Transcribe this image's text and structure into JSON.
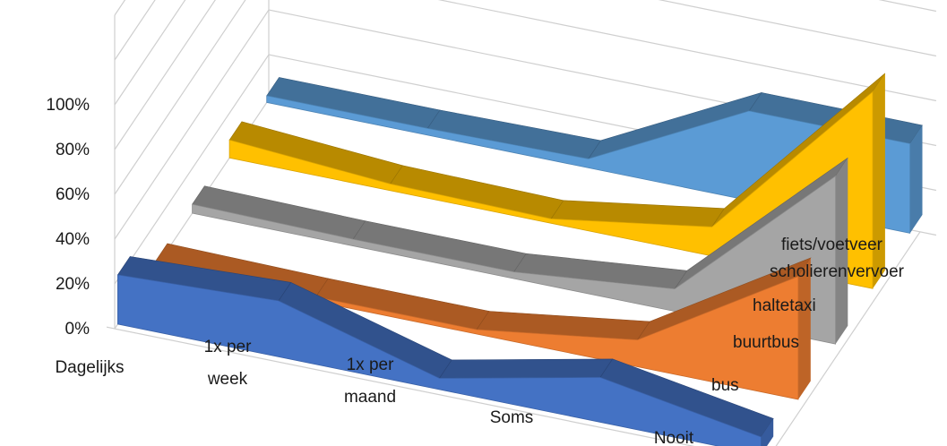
{
  "chart_data": {
    "type": "area",
    "subtype": "3d-area",
    "title": "",
    "categories": [
      "Dagelijks",
      "1x per week",
      "1x per maand",
      "Soms",
      "Nooit"
    ],
    "y_tick_labels": [
      "0%",
      "20%",
      "40%",
      "60%",
      "80%",
      "100%"
    ],
    "ylim": [
      0,
      100
    ],
    "grid": true,
    "legend": "none",
    "series": [
      {
        "name": "bus",
        "values": [
          22,
          25,
          5,
          20,
          8
        ],
        "color": "#4472c4"
      },
      {
        "name": "buurtbus",
        "values": [
          3,
          2,
          2,
          12,
          55
        ],
        "color": "#ed7d31"
      },
      {
        "name": "haltetaxi",
        "values": [
          4,
          3,
          3,
          10,
          75
        ],
        "color": "#a5a5a5"
      },
      {
        "name": "scholierenvervoer",
        "values": [
          8,
          3,
          2,
          13,
          88
        ],
        "color": "#ffc000"
      },
      {
        "name": "fiets/voetveer",
        "values": [
          3,
          3,
          4,
          40,
          40
        ],
        "color": "#5b9bd5"
      }
    ]
  }
}
